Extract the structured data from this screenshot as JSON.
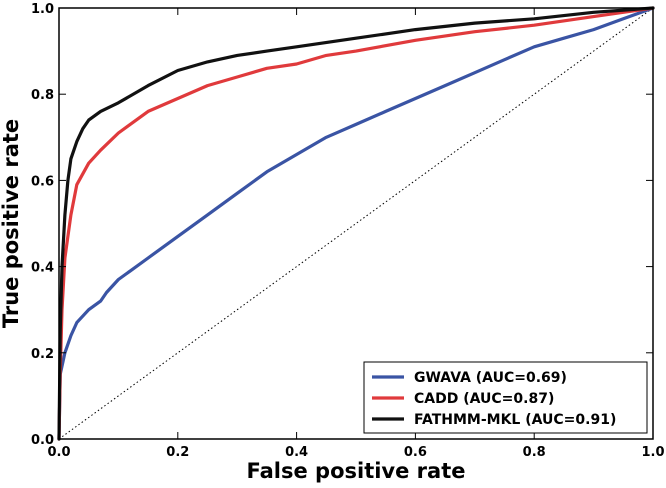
{
  "chart_data": {
    "type": "line",
    "title": "",
    "xlabel": "False positive rate",
    "ylabel": "True positive rate",
    "xlim": [
      0.0,
      1.0
    ],
    "ylim": [
      0.0,
      1.0
    ],
    "x_ticks": [
      "0.0",
      "0.2",
      "0.4",
      "0.6",
      "0.8",
      "1.0"
    ],
    "y_ticks": [
      "0.0",
      "0.2",
      "0.4",
      "0.6",
      "0.8",
      "1.0"
    ],
    "grid": false,
    "legend_position": "bottom-right",
    "reference_line": {
      "style": "dotted",
      "color": "#000000",
      "points": [
        [
          0,
          0
        ],
        [
          1,
          1
        ]
      ]
    },
    "series": [
      {
        "name": "GWAVA (AUC=0.69)",
        "color": "#3a54a4",
        "points": [
          [
            0,
            0
          ],
          [
            0.002,
            0.15
          ],
          [
            0.01,
            0.2
          ],
          [
            0.02,
            0.24
          ],
          [
            0.03,
            0.27
          ],
          [
            0.05,
            0.3
          ],
          [
            0.07,
            0.32
          ],
          [
            0.08,
            0.34
          ],
          [
            0.1,
            0.37
          ],
          [
            0.12,
            0.39
          ],
          [
            0.15,
            0.42
          ],
          [
            0.2,
            0.47
          ],
          [
            0.25,
            0.52
          ],
          [
            0.3,
            0.57
          ],
          [
            0.35,
            0.62
          ],
          [
            0.4,
            0.66
          ],
          [
            0.45,
            0.7
          ],
          [
            0.5,
            0.73
          ],
          [
            0.55,
            0.76
          ],
          [
            0.6,
            0.79
          ],
          [
            0.65,
            0.82
          ],
          [
            0.7,
            0.85
          ],
          [
            0.75,
            0.88
          ],
          [
            0.8,
            0.91
          ],
          [
            0.85,
            0.93
          ],
          [
            0.9,
            0.95
          ],
          [
            0.95,
            0.975
          ],
          [
            1.0,
            1.0
          ]
        ]
      },
      {
        "name": "CADD (AUC=0.87)",
        "color": "#e03a3c",
        "points": [
          [
            0,
            0
          ],
          [
            0.002,
            0.15
          ],
          [
            0.005,
            0.3
          ],
          [
            0.01,
            0.42
          ],
          [
            0.02,
            0.52
          ],
          [
            0.03,
            0.59
          ],
          [
            0.05,
            0.64
          ],
          [
            0.07,
            0.67
          ],
          [
            0.1,
            0.71
          ],
          [
            0.15,
            0.76
          ],
          [
            0.2,
            0.79
          ],
          [
            0.25,
            0.82
          ],
          [
            0.3,
            0.84
          ],
          [
            0.35,
            0.86
          ],
          [
            0.4,
            0.87
          ],
          [
            0.45,
            0.89
          ],
          [
            0.5,
            0.9
          ],
          [
            0.6,
            0.925
          ],
          [
            0.7,
            0.945
          ],
          [
            0.8,
            0.96
          ],
          [
            0.9,
            0.98
          ],
          [
            0.95,
            0.99
          ],
          [
            1.0,
            1.0
          ]
        ]
      },
      {
        "name": "FATHMM-MKL (AUC=0.91)",
        "color": "#111111",
        "points": [
          [
            0,
            0
          ],
          [
            0.002,
            0.25
          ],
          [
            0.005,
            0.4
          ],
          [
            0.01,
            0.52
          ],
          [
            0.015,
            0.6
          ],
          [
            0.02,
            0.65
          ],
          [
            0.03,
            0.69
          ],
          [
            0.04,
            0.72
          ],
          [
            0.05,
            0.74
          ],
          [
            0.07,
            0.76
          ],
          [
            0.1,
            0.78
          ],
          [
            0.15,
            0.82
          ],
          [
            0.2,
            0.855
          ],
          [
            0.25,
            0.875
          ],
          [
            0.3,
            0.89
          ],
          [
            0.35,
            0.9
          ],
          [
            0.4,
            0.91
          ],
          [
            0.5,
            0.93
          ],
          [
            0.6,
            0.95
          ],
          [
            0.7,
            0.965
          ],
          [
            0.8,
            0.975
          ],
          [
            0.9,
            0.99
          ],
          [
            1.0,
            1.0
          ]
        ]
      }
    ]
  }
}
